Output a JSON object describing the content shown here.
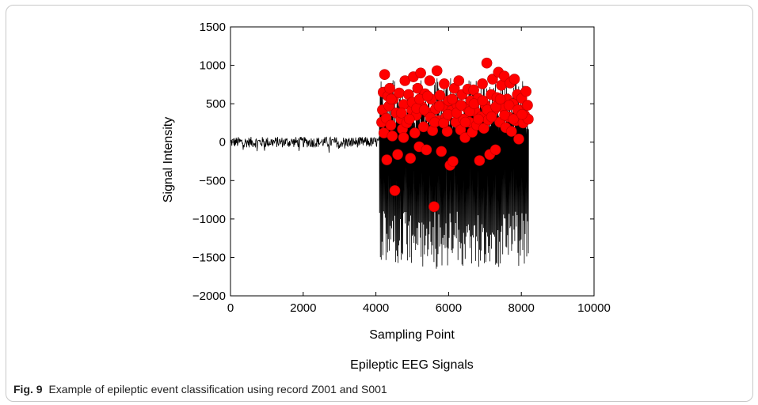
{
  "chart_data": {
    "type": "scatter",
    "title": "",
    "xlabel": "Sampling Point",
    "ylabel": "Signal Intensity",
    "subtitle": "Epileptic EEG Signals",
    "xlim": [
      0,
      10000
    ],
    "ylim": [
      -2000,
      1500
    ],
    "xticks": [
      0,
      2000,
      4000,
      6000,
      8000,
      10000
    ],
    "xtick_labels": [
      "0",
      "2000",
      "4000",
      "6000",
      "8000",
      "10000"
    ],
    "yticks": [
      -2000,
      -1500,
      -1000,
      -500,
      0,
      500,
      1000,
      1500
    ],
    "ytick_labels": [
      "−2000",
      "−1500",
      "−1000",
      "−500",
      "0",
      "500",
      "1000",
      "1500"
    ],
    "grid": false,
    "series": [
      {
        "kind": "line",
        "color": "#000000",
        "segments": [
          {
            "x_range": [
              0,
              4096
            ],
            "description_range": [
              -150,
              120
            ]
          },
          {
            "x_range": [
              4097,
              8192
            ],
            "min": -1750,
            "max": 1030
          }
        ]
      },
      {
        "kind": "markers",
        "color": "#ff0000",
        "marker": "circle",
        "points": [
          [
            4240,
            880
          ],
          [
            4200,
            650
          ],
          [
            4180,
            420
          ],
          [
            4160,
            260
          ],
          [
            4220,
            120
          ],
          [
            4280,
            310
          ],
          [
            4330,
            600
          ],
          [
            4300,
            -230
          ],
          [
            4360,
            470
          ],
          [
            4410,
            220
          ],
          [
            4450,
            80
          ],
          [
            4480,
            560
          ],
          [
            4520,
            -630
          ],
          [
            4560,
            380
          ],
          [
            4600,
            -160
          ],
          [
            4640,
            640
          ],
          [
            4690,
            300
          ],
          [
            4730,
            170
          ],
          [
            4770,
            490
          ],
          [
            4800,
            800
          ],
          [
            4850,
            250
          ],
          [
            4900,
            620
          ],
          [
            4950,
            -210
          ],
          [
            4990,
            420
          ],
          [
            5030,
            850
          ],
          [
            5070,
            120
          ],
          [
            5110,
            350
          ],
          [
            5150,
            700
          ],
          [
            5190,
            -60
          ],
          [
            5230,
            900
          ],
          [
            5270,
            460
          ],
          [
            5310,
            200
          ],
          [
            5350,
            630
          ],
          [
            5390,
            -100
          ],
          [
            5440,
            380
          ],
          [
            5480,
            800
          ],
          [
            5520,
            560
          ],
          [
            5560,
            150
          ],
          [
            5600,
            -840
          ],
          [
            5640,
            430
          ],
          [
            5680,
            930
          ],
          [
            5720,
            280
          ],
          [
            5760,
            610
          ],
          [
            5800,
            -120
          ],
          [
            5840,
            470
          ],
          [
            5880,
            760
          ],
          [
            5920,
            320
          ],
          [
            5960,
            140
          ],
          [
            6000,
            540
          ],
          [
            6040,
            -300
          ],
          [
            6080,
            410
          ],
          [
            6120,
            -250
          ],
          [
            6160,
            700
          ],
          [
            6200,
            260
          ],
          [
            6240,
            480
          ],
          [
            6280,
            800
          ],
          [
            6330,
            160
          ],
          [
            6370,
            620
          ],
          [
            6410,
            300
          ],
          [
            6450,
            60
          ],
          [
            6490,
            450
          ],
          [
            6530,
            690
          ],
          [
            6570,
            260
          ],
          [
            6610,
            540
          ],
          [
            6650,
            130
          ],
          [
            6690,
            680
          ],
          [
            6730,
            400
          ],
          [
            6770,
            220
          ],
          [
            6810,
            570
          ],
          [
            6850,
            -240
          ],
          [
            6890,
            330
          ],
          [
            6930,
            760
          ],
          [
            6970,
            180
          ],
          [
            7010,
            480
          ],
          [
            7050,
            1030
          ],
          [
            7090,
            290
          ],
          [
            7130,
            -160
          ],
          [
            7170,
            620
          ],
          [
            7210,
            820
          ],
          [
            7250,
            420
          ],
          [
            7290,
            -100
          ],
          [
            7330,
            580
          ],
          [
            7370,
            910
          ],
          [
            7410,
            260
          ],
          [
            7450,
            740
          ],
          [
            7490,
            450
          ],
          [
            7530,
            860
          ],
          [
            7570,
            190
          ],
          [
            7610,
            560
          ],
          [
            7650,
            330
          ],
          [
            7690,
            770
          ],
          [
            7730,
            140
          ],
          [
            7770,
            500
          ],
          [
            7810,
            820
          ],
          [
            7850,
            280
          ],
          [
            7890,
            620
          ],
          [
            7930,
            40
          ],
          [
            7970,
            420
          ],
          [
            8010,
            570
          ],
          [
            8050,
            250
          ],
          [
            8090,
            350
          ],
          [
            8130,
            660
          ],
          [
            8170,
            480
          ],
          [
            8190,
            300
          ],
          [
            4380,
            700
          ],
          [
            4420,
            560
          ],
          [
            4700,
            380
          ],
          [
            4760,
            60
          ],
          [
            4920,
            300
          ],
          [
            5000,
            520
          ],
          [
            5120,
            440
          ],
          [
            5200,
            560
          ],
          [
            5330,
            420
          ],
          [
            5420,
            600
          ],
          [
            5500,
            320
          ],
          [
            5620,
            260
          ],
          [
            5740,
            470
          ],
          [
            5860,
            250
          ],
          [
            5980,
            360
          ],
          [
            6100,
            560
          ],
          [
            6220,
            380
          ],
          [
            6340,
            480
          ],
          [
            6460,
            260
          ],
          [
            6580,
            400
          ],
          [
            6700,
            500
          ],
          [
            6820,
            300
          ],
          [
            6940,
            540
          ],
          [
            7060,
            420
          ],
          [
            7180,
            330
          ],
          [
            7300,
            460
          ],
          [
            7420,
            560
          ],
          [
            7540,
            350
          ],
          [
            7660,
            480
          ],
          [
            7780,
            300
          ],
          [
            7900,
            420
          ],
          [
            8020,
            360
          ]
        ]
      }
    ]
  },
  "caption": {
    "label": "Fig. 9",
    "text": "Example of epileptic event classification using record Z001 and S001"
  }
}
